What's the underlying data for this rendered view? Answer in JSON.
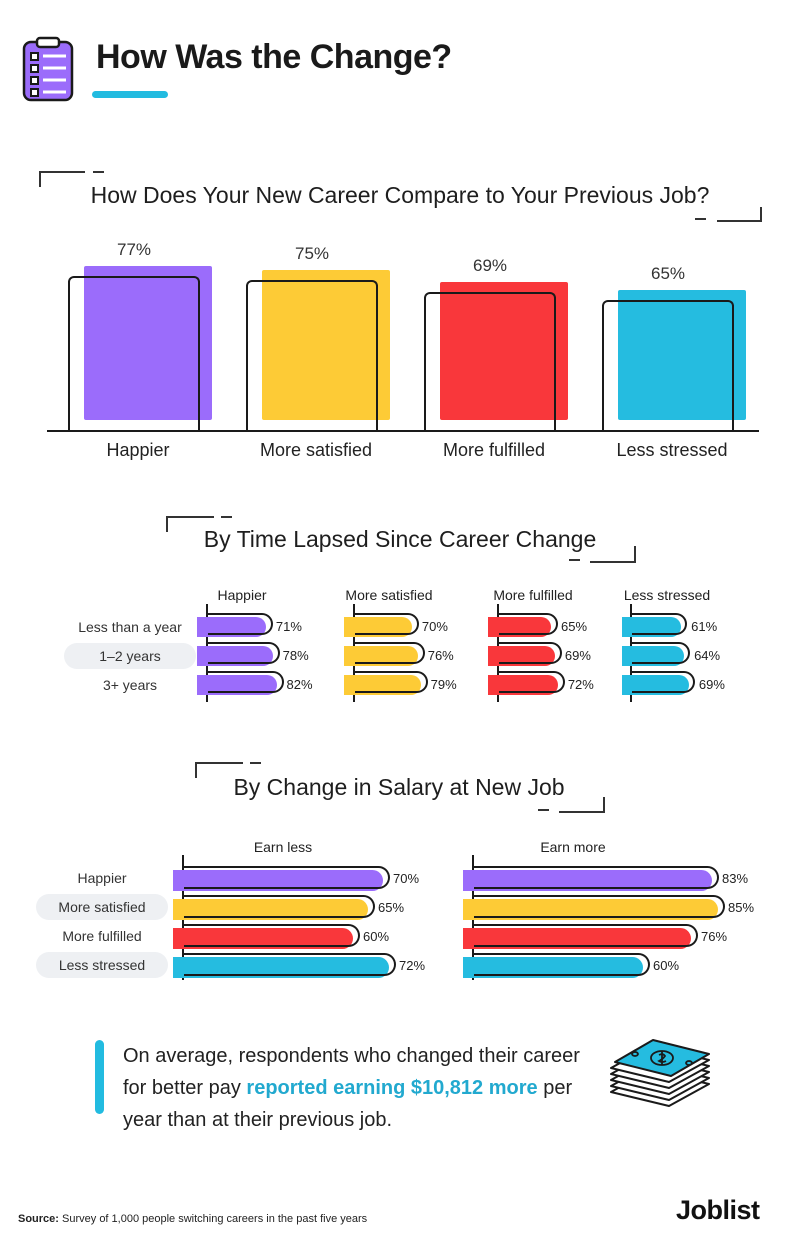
{
  "header": {
    "title": "How Was the Change?",
    "icon": "clipboard-checklist-icon"
  },
  "chart_data": [
    {
      "type": "bar",
      "title": "How Does Your New Career Compare to Your Previous Job?",
      "categories": [
        "Happier",
        "More satisfied",
        "More fulfilled",
        "Less stressed"
      ],
      "values": [
        77,
        75,
        69,
        65
      ],
      "value_labels": [
        "77%",
        "75%",
        "69%",
        "65%"
      ],
      "colors": [
        "#9b6cfb",
        "#fdcb36",
        "#f9373b",
        "#25bce0"
      ],
      "ylim": [
        0,
        100
      ],
      "grid": false
    },
    {
      "type": "bar",
      "orientation": "horizontal",
      "title": "By Time Lapsed Since Career Change",
      "categories": [
        "Less than a year",
        "1–2 years",
        "3+ years"
      ],
      "series": [
        {
          "name": "Happier",
          "values": [
            71,
            78,
            82
          ],
          "value_labels": [
            "71%",
            "78%",
            "82%"
          ],
          "color": "#9b6cfb"
        },
        {
          "name": "More satisfied",
          "values": [
            70,
            76,
            79
          ],
          "value_labels": [
            "70%",
            "76%",
            "79%"
          ],
          "color": "#fdcb36"
        },
        {
          "name": "More fulfilled",
          "values": [
            65,
            69,
            72
          ],
          "value_labels": [
            "65%",
            "69%",
            "72%"
          ],
          "color": "#f9373b"
        },
        {
          "name": "Less stressed",
          "values": [
            61,
            64,
            69
          ],
          "value_labels": [
            "61%",
            "64%",
            "69%"
          ],
          "color": "#25bce0"
        }
      ],
      "grid": false
    },
    {
      "type": "bar",
      "orientation": "horizontal",
      "title": "By Change in Salary at New Job",
      "categories": [
        "Happier",
        "More satisfied",
        "More fulfilled",
        "Less stressed"
      ],
      "colors": [
        "#9b6cfb",
        "#fdcb36",
        "#f9373b",
        "#25bce0"
      ],
      "series": [
        {
          "name": "Earn less",
          "values": [
            70,
            65,
            60,
            72
          ],
          "value_labels": [
            "70%",
            "65%",
            "60%",
            "72%"
          ]
        },
        {
          "name": "Earn more",
          "values": [
            83,
            85,
            76,
            60
          ],
          "value_labels": [
            "83%",
            "85%",
            "76%",
            "60%"
          ]
        }
      ],
      "grid": false
    }
  ],
  "callout": {
    "text_before": "On average, respondents who changed their career for better pay ",
    "highlight": "reported earning $10,812 more",
    "text_after": " per year than at their previous job.",
    "highlight_color": "#22a9cf",
    "icon": "money-stack-icon"
  },
  "footer": {
    "source_label": "Source:",
    "source_text": " Survey of 1,000 people switching careers in the past five years",
    "logo": "Joblist"
  }
}
